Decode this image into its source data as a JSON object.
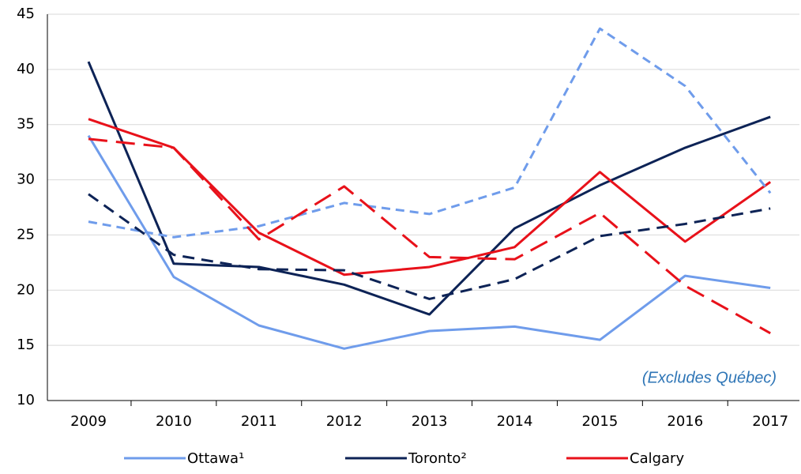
{
  "chart_data": {
    "type": "line",
    "categories": [
      "2009",
      "2010",
      "2011",
      "2012",
      "2013",
      "2014",
      "2015",
      "2016",
      "2017"
    ],
    "series": [
      {
        "name": "Ottawa¹",
        "color": "#6f9ceb",
        "style": "solid",
        "values": [
          34.0,
          21.2,
          16.8,
          14.7,
          16.3,
          16.7,
          15.5,
          21.3,
          20.2
        ]
      },
      {
        "name": "Toronto²",
        "color": "#0d2356",
        "style": "solid",
        "values": [
          40.7,
          22.4,
          22.1,
          20.5,
          17.8,
          25.6,
          29.5,
          32.9,
          35.7
        ]
      },
      {
        "name": "Calgary",
        "color": "#e8111a",
        "style": "solid",
        "values": [
          35.5,
          32.9,
          25.2,
          21.4,
          22.1,
          23.9,
          30.7,
          24.4,
          29.8
        ]
      },
      {
        "color": "#6f9ceb",
        "style": "dashed",
        "values": [
          26.2,
          24.8,
          25.8,
          27.9,
          26.9,
          29.3,
          43.7,
          38.5,
          28.8
        ]
      },
      {
        "color": "#0d2356",
        "style": "dashed",
        "values": [
          28.7,
          23.2,
          21.9,
          21.8,
          19.2,
          21.0,
          24.9,
          26.0,
          27.4
        ]
      },
      {
        "color": "#e8111a",
        "style": "dashed",
        "values": [
          33.7,
          32.9,
          24.6,
          29.4,
          23.0,
          22.8,
          27.0,
          20.4,
          16.1
        ]
      }
    ],
    "annotation": "(Excludes Québec)",
    "ylim": [
      10,
      45
    ],
    "yticks": [
      10,
      15,
      20,
      25,
      30,
      35,
      40,
      45
    ],
    "grid": true,
    "legend": "bottom"
  }
}
